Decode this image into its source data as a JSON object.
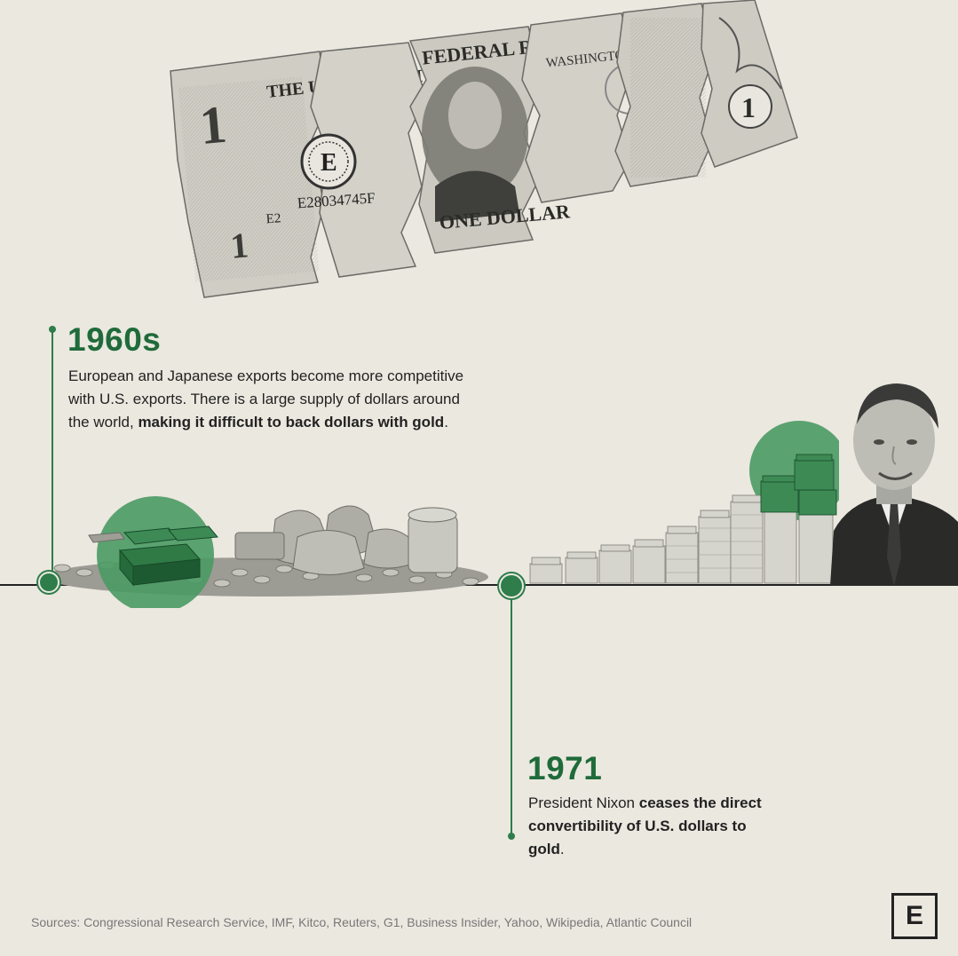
{
  "bill": {
    "top_text": "THE UNITED STATES OF AMERICA",
    "reserve_text": "FEDERAL RESERVE NOTE",
    "serial": "E28034745F",
    "seal_letter": "E",
    "left_code": "E2",
    "bottom_text": "ONE DOLLAR",
    "city": "WASHINGTON, D.C."
  },
  "timeline": {
    "item1": {
      "year": "1960s",
      "text_plain": "European and Japanese exports become more competitive with U.S. exports. There is a large supply of dollars around the world, ",
      "text_bold": "making it difficult to back dollars with gold",
      "text_end": "."
    },
    "item2": {
      "year": "1971",
      "text_plain": "President Nixon ",
      "text_bold": "ceases the direct convertibility of U.S. dollars to gold",
      "text_end": "."
    }
  },
  "footer": {
    "sources": "Sources: Congressional Research Service, IMF, Kitco, Reuters, G1, Business Insider, Yahoo, Wikipedia, Atlantic Council",
    "logo_letter": "E"
  },
  "colors": {
    "background": "#ebe8e0",
    "accent_green": "#1f6b3a",
    "highlight_green": "#4a9a63",
    "line": "#222222"
  }
}
